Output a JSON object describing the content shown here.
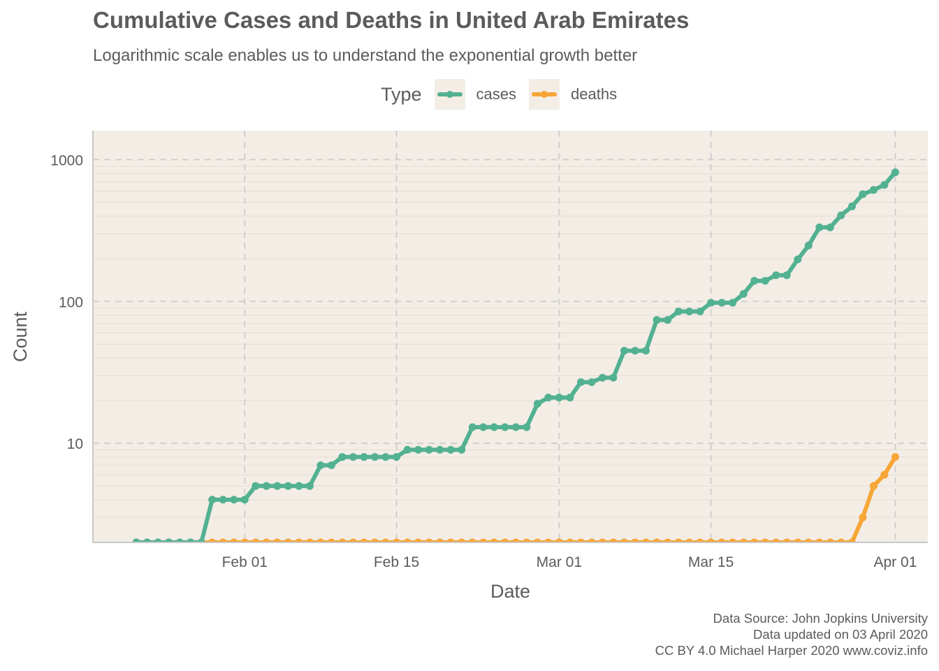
{
  "title": "Cumulative Cases and Deaths in United Arab Emirates",
  "subtitle": "Logarithmic scale enables us to understand the exponential growth better",
  "legend": {
    "title": "Type",
    "items": [
      {
        "label": "cases",
        "color": "#52b191"
      },
      {
        "label": "deaths",
        "color": "#f7a637"
      }
    ]
  },
  "caption": [
    "Data Source: John Jopkins University",
    "Data updated on 03 April 2020",
    "CC BY 4.0 Michael Harper 2020 www.coviz.info"
  ],
  "chart_data": {
    "type": "line",
    "title": "Cumulative Cases and Deaths in United Arab Emirates",
    "subtitle": "Logarithmic scale enables us to understand the exponential growth better",
    "xlabel": "Date",
    "ylabel": "Count",
    "y_scale": "log10",
    "ylim": [
      2,
      1600
    ],
    "xlim": [
      "2020-01-18",
      "2020-04-04"
    ],
    "grid": true,
    "legend_position": "top",
    "background": "#f3ede6",
    "x_tick_labels": [
      {
        "label": "Feb 01",
        "date": "2020-02-01"
      },
      {
        "label": "Feb 15",
        "date": "2020-02-15"
      },
      {
        "label": "Mar 01",
        "date": "2020-03-01"
      },
      {
        "label": "Mar 15",
        "date": "2020-03-15"
      },
      {
        "label": "Apr 01",
        "date": "2020-04-01"
      }
    ],
    "y_tick_labels": [
      {
        "label": "10",
        "value": 10
      },
      {
        "label": "100",
        "value": 100
      },
      {
        "label": "1000",
        "value": 1000
      }
    ],
    "x": [
      "2020-01-22",
      "2020-01-23",
      "2020-01-24",
      "2020-01-25",
      "2020-01-26",
      "2020-01-27",
      "2020-01-28",
      "2020-01-29",
      "2020-01-30",
      "2020-01-31",
      "2020-02-01",
      "2020-02-02",
      "2020-02-03",
      "2020-02-04",
      "2020-02-05",
      "2020-02-06",
      "2020-02-07",
      "2020-02-08",
      "2020-02-09",
      "2020-02-10",
      "2020-02-11",
      "2020-02-12",
      "2020-02-13",
      "2020-02-14",
      "2020-02-15",
      "2020-02-16",
      "2020-02-17",
      "2020-02-18",
      "2020-02-19",
      "2020-02-20",
      "2020-02-21",
      "2020-02-22",
      "2020-02-23",
      "2020-02-24",
      "2020-02-25",
      "2020-02-26",
      "2020-02-27",
      "2020-02-28",
      "2020-02-29",
      "2020-03-01",
      "2020-03-02",
      "2020-03-03",
      "2020-03-04",
      "2020-03-05",
      "2020-03-06",
      "2020-03-07",
      "2020-03-08",
      "2020-03-09",
      "2020-03-10",
      "2020-03-11",
      "2020-03-12",
      "2020-03-13",
      "2020-03-14",
      "2020-03-15",
      "2020-03-16",
      "2020-03-17",
      "2020-03-18",
      "2020-03-19",
      "2020-03-20",
      "2020-03-21",
      "2020-03-22",
      "2020-03-23",
      "2020-03-24",
      "2020-03-25",
      "2020-03-26",
      "2020-03-27",
      "2020-03-28",
      "2020-03-29",
      "2020-03-30",
      "2020-03-31",
      "2020-04-01"
    ],
    "series": [
      {
        "name": "cases",
        "color": "#52b191",
        "values": [
          0,
          0,
          0,
          0,
          0,
          0,
          0,
          4,
          4,
          4,
          4,
          5,
          5,
          5,
          5,
          5,
          5,
          7,
          7,
          8,
          8,
          8,
          8,
          8,
          8,
          9,
          9,
          9,
          9,
          9,
          9,
          13,
          13,
          13,
          13,
          13,
          13,
          19,
          21,
          21,
          21,
          27,
          27,
          29,
          29,
          45,
          45,
          45,
          74,
          74,
          85,
          85,
          85,
          98,
          98,
          98,
          113,
          140,
          140,
          153,
          153,
          198,
          248,
          333,
          333,
          405,
          468,
          570,
          611,
          664,
          814
        ]
      },
      {
        "name": "deaths",
        "color": "#f7a637",
        "values": [
          0,
          0,
          0,
          0,
          0,
          0,
          0,
          0,
          0,
          0,
          0,
          0,
          0,
          0,
          0,
          0,
          0,
          0,
          0,
          0,
          0,
          0,
          0,
          0,
          0,
          0,
          0,
          0,
          0,
          0,
          0,
          0,
          0,
          0,
          0,
          0,
          0,
          0,
          0,
          0,
          0,
          0,
          0,
          0,
          0,
          0,
          0,
          0,
          0,
          0,
          0,
          0,
          0,
          0,
          0,
          0,
          0,
          0,
          0,
          0,
          0,
          0,
          0,
          0,
          0,
          0,
          0,
          3,
          5,
          6,
          8
        ]
      }
    ]
  }
}
